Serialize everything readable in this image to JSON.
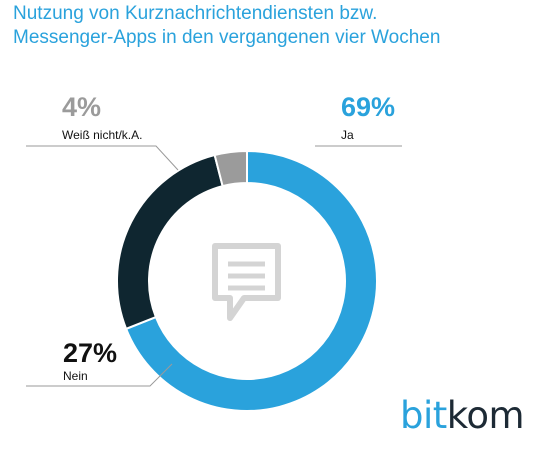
{
  "chart_data": {
    "type": "pie",
    "style": "donut",
    "title": "Nutzung von Kurznachrichtendiensten bzw. Messenger-Apps in den vergangenen vier Wochen",
    "title_lines": [
      "Nutzung von Kurznachrichtendiensten bzw.",
      "Messenger-Apps in den vergangenen vier Wochen"
    ],
    "slices": [
      {
        "label": "Ja",
        "value": 69,
        "value_label": "69%",
        "color": "#2aa2dc"
      },
      {
        "label": "Nein",
        "value": 27,
        "value_label": "27%",
        "color": "#0f2630"
      },
      {
        "label": "Weiß nicht/k.A.",
        "value": 4,
        "value_label": "4%",
        "color": "#9b9b9b"
      }
    ],
    "center_icon": "speech-bubble-icon",
    "center_icon_color": "#d4d4d4",
    "leader_color": "#9a9a9a"
  },
  "brand": {
    "logo_part1": "bit",
    "logo_part2": "kom",
    "color1": "#2aa2dc",
    "color2": "#1d2a35"
  }
}
